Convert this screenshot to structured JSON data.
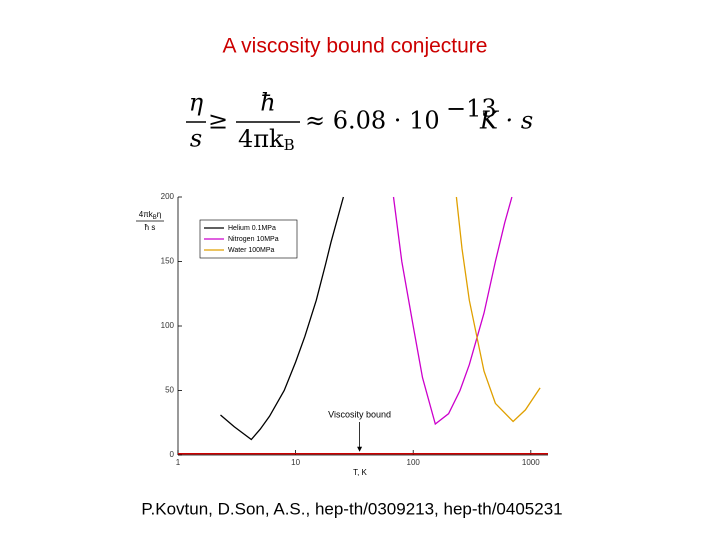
{
  "title": "A viscosity bound conjecture",
  "formula": {
    "lhs_num": "η",
    "lhs_den": "s",
    "relation": "≥",
    "rhs_num": "ħ",
    "rhs_den": "4πk",
    "rhs_den_sub": "B",
    "approx": "≈ 6.08 · 10",
    "exponent": "−13",
    "units": "K · s"
  },
  "citation": "P.Kovtun, D.Son, A.S., hep-th/0309213, hep-th/0405231",
  "chart_data": {
    "type": "line",
    "xlabel": "T, K",
    "ylabel": {
      "num": "4πk",
      "num_sub": "B",
      "num_tail": "η",
      "den": "ħ s"
    },
    "xscale": "log",
    "xlim": [
      1,
      1400
    ],
    "xticks": [
      1,
      10,
      100,
      1000
    ],
    "ylim": [
      0,
      200
    ],
    "yticks": [
      0,
      50,
      100,
      150,
      200
    ],
    "legend": "upper left",
    "series": [
      {
        "name": "Helium 0.1MPa",
        "color": "#000000",
        "x": [
          2.3,
          3,
          4.2,
          5,
          6,
          8,
          10,
          12,
          15,
          18,
          20,
          23,
          25.5
        ],
        "values": [
          31,
          22,
          12,
          20,
          30,
          50,
          72,
          92,
          120,
          148,
          165,
          185,
          200
        ]
      },
      {
        "name": "Nitrogen 10MPa",
        "color": "#cc00cc",
        "x": [
          68,
          80,
          100,
          120,
          154,
          200,
          250,
          300,
          400,
          500,
          600,
          690
        ],
        "values": [
          200,
          150,
          100,
          60,
          24,
          32,
          50,
          70,
          110,
          150,
          180,
          200
        ]
      },
      {
        "name": "Water 100MPa",
        "color": "#e0a000",
        "x": [
          233,
          260,
          300,
          400,
          500,
          707,
          900,
          1200
        ],
        "values": [
          200,
          160,
          120,
          65,
          40,
          26,
          35,
          52
        ]
      }
    ],
    "bound": {
      "label": "Viscosity bound",
      "value": 1,
      "x": 35,
      "color": "#cc0000"
    }
  }
}
